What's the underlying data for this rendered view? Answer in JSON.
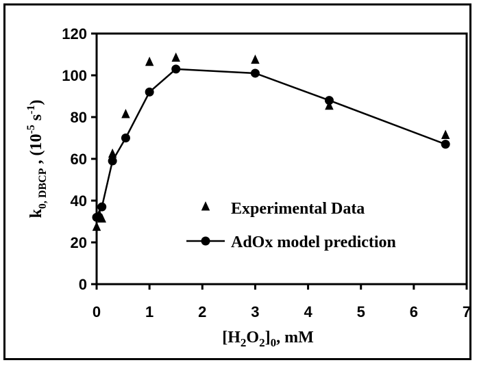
{
  "chart_data": {
    "type": "scatter",
    "x_axis": {
      "label_parts": [
        "[H",
        "2",
        "O",
        "2",
        "]",
        "0",
        ", mM"
      ],
      "range": [
        0,
        7
      ],
      "ticks": [
        0,
        1,
        2,
        3,
        4,
        5,
        6,
        7
      ]
    },
    "y_axis": {
      "label_parts": [
        "k",
        "0, DBCP",
        " , (10",
        "-5",
        " s",
        "-1",
        ")"
      ],
      "range": [
        0,
        120
      ],
      "ticks": [
        0,
        20,
        40,
        60,
        80,
        100,
        120
      ]
    },
    "grid": false,
    "legend": {
      "position": "bottom-right"
    },
    "series": [
      {
        "name": "Experimental Data",
        "marker": "triangle",
        "line": false,
        "points": [
          [
            0.0,
            27
          ],
          [
            0.05,
            33
          ],
          [
            0.1,
            31
          ],
          [
            0.3,
            62
          ],
          [
            0.55,
            81
          ],
          [
            1.0,
            106
          ],
          [
            1.5,
            108
          ],
          [
            3.0,
            107
          ],
          [
            4.4,
            85
          ],
          [
            6.6,
            71
          ]
        ]
      },
      {
        "name": "AdOx model prediction",
        "marker": "circle",
        "line": true,
        "points": [
          [
            0.0,
            32
          ],
          [
            0.1,
            37
          ],
          [
            0.3,
            59
          ],
          [
            0.55,
            70
          ],
          [
            1.0,
            92
          ],
          [
            1.5,
            103
          ],
          [
            3.0,
            101
          ],
          [
            4.4,
            88
          ],
          [
            6.6,
            67
          ]
        ]
      }
    ],
    "colors": {
      "marker": "#000000",
      "line": "#000000"
    }
  }
}
